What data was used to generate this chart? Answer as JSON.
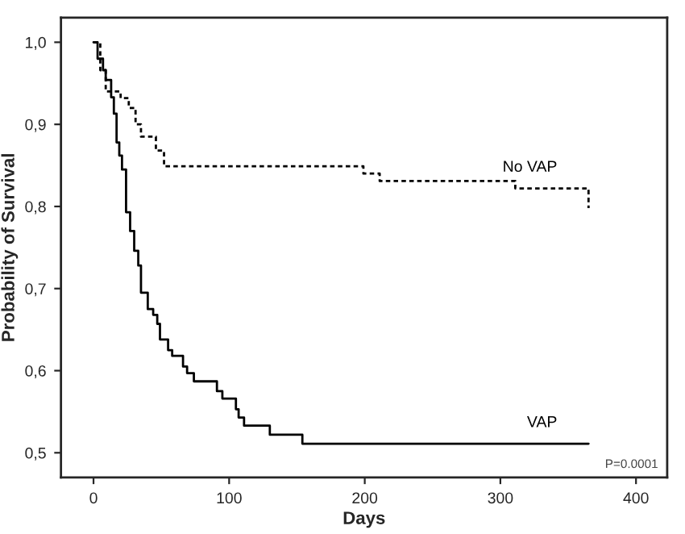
{
  "chart_data": {
    "type": "step",
    "xlabel": "Days",
    "ylabel": "Probability of Survival",
    "xlim": [
      -24,
      423
    ],
    "ylim": [
      0.47,
      1.03
    ],
    "xticks": [
      0,
      100,
      200,
      300,
      400
    ],
    "yticks": [
      {
        "value": 0.5,
        "label": "0,5"
      },
      {
        "value": 0.6,
        "label": "0,6"
      },
      {
        "value": 0.7,
        "label": "0,7"
      },
      {
        "value": 0.8,
        "label": "0,8"
      },
      {
        "value": 0.9,
        "label": "0,9"
      },
      {
        "value": 1.0,
        "label": "1,0"
      }
    ],
    "grid": false,
    "legend": false,
    "annotations": [
      "P=0.0001"
    ],
    "series": [
      {
        "name": "VAP",
        "color": "#000000",
        "line_style": "solid",
        "x": [
          0,
          3,
          7,
          9,
          13,
          15,
          17,
          19,
          21,
          24,
          27,
          30,
          33,
          35,
          40,
          44,
          47,
          49,
          55,
          58,
          66,
          69,
          74,
          91,
          95,
          105,
          107,
          111,
          130,
          154,
          365
        ],
        "values": [
          1.0,
          0.98,
          0.966,
          0.954,
          0.933,
          0.913,
          0.878,
          0.862,
          0.845,
          0.793,
          0.77,
          0.746,
          0.728,
          0.695,
          0.675,
          0.668,
          0.657,
          0.638,
          0.625,
          0.618,
          0.605,
          0.597,
          0.587,
          0.575,
          0.566,
          0.553,
          0.543,
          0.533,
          0.522,
          0.511,
          0.511
        ]
      },
      {
        "name": "No VAP",
        "color": "#000000",
        "line_style": "dashed",
        "x": [
          0,
          5,
          9,
          20,
          26,
          31,
          35,
          46,
          52,
          199,
          211,
          311,
          365,
          365
        ],
        "values": [
          1.0,
          0.966,
          0.94,
          0.932,
          0.92,
          0.9,
          0.885,
          0.868,
          0.849,
          0.84,
          0.831,
          0.822,
          0.822,
          0.798
        ]
      }
    ]
  }
}
